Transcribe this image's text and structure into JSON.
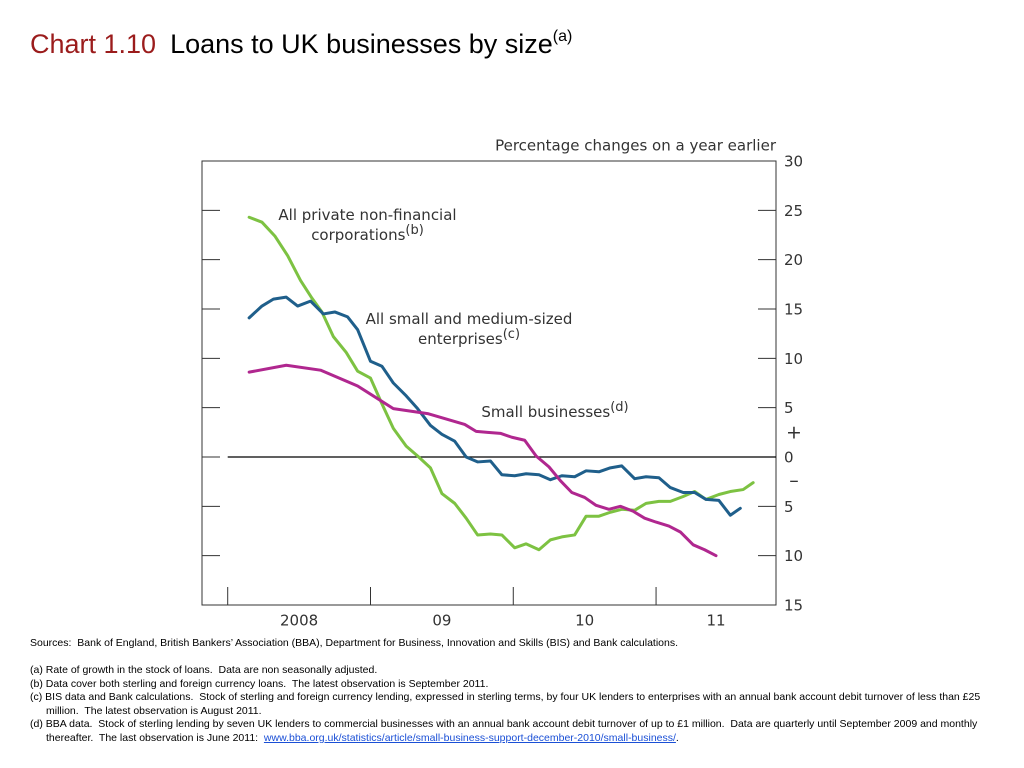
{
  "chart_data": {
    "type": "line",
    "chart_number": "Chart 1.10",
    "title": "Loans to UK businesses by size",
    "title_note": "(a)",
    "y_label": "Percentage changes on a year earlier",
    "positive_sign": "+",
    "negative_sign": "–",
    "xlim": [
      2007.82,
      2011.84
    ],
    "xticks": [
      {
        "value": 2008,
        "label": "2008"
      },
      {
        "value": 2009,
        "label": "09"
      },
      {
        "value": 2010,
        "label": "10"
      },
      {
        "value": 2011,
        "label": "11"
      }
    ],
    "ylim": [
      -15,
      30
    ],
    "yticks": [
      {
        "value": -15,
        "label": "15"
      },
      {
        "value": -10,
        "label": "10"
      },
      {
        "value": -5,
        "label": "5"
      },
      0,
      5,
      10,
      15,
      20,
      25,
      30
    ],
    "series": [
      {
        "name": "All private non-financial corporations",
        "note": "(b)",
        "color": "#7dc242",
        "x": [
          2008.15,
          2008.24,
          2008.33,
          2008.42,
          2008.51,
          2008.59,
          2008.66,
          2008.74,
          2008.83,
          2008.91,
          2009.0,
          2009.08,
          2009.16,
          2009.25,
          2009.33,
          2009.42,
          2009.5,
          2009.59,
          2009.67,
          2009.75,
          2009.84,
          2009.92,
          2010.01,
          2010.09,
          2010.18,
          2010.26,
          2010.34,
          2010.43,
          2010.51,
          2010.6,
          2010.68,
          2010.76,
          2010.85,
          2010.93,
          2011.02,
          2011.1,
          2011.19,
          2011.27,
          2011.35,
          2011.44,
          2011.52,
          2011.61,
          2011.68
        ],
        "values": [
          24.3,
          23.8,
          22.4,
          20.4,
          17.9,
          16.1,
          14.7,
          12.2,
          10.6,
          8.7,
          8.0,
          5.4,
          2.9,
          1.1,
          0.1,
          -1.1,
          -3.7,
          -4.7,
          -6.2,
          -7.9,
          -7.8,
          -7.9,
          -9.2,
          -8.8,
          -9.4,
          -8.4,
          -8.1,
          -7.9,
          -6.0,
          -6.0,
          -5.6,
          -5.3,
          -5.4,
          -4.7,
          -4.5,
          -4.5,
          -4.0,
          -3.5,
          -4.3,
          -3.8,
          -3.5,
          -3.3,
          -2.6
        ]
      },
      {
        "name": "All small and medium-sized enterprises",
        "note": "(c)",
        "color": "#1f5f8b",
        "x": [
          2008.15,
          2008.24,
          2008.32,
          2008.41,
          2008.49,
          2008.58,
          2008.67,
          2008.75,
          2008.84,
          2008.91,
          2009.0,
          2009.08,
          2009.16,
          2009.25,
          2009.33,
          2009.42,
          2009.5,
          2009.59,
          2009.67,
          2009.75,
          2009.84,
          2009.92,
          2010.01,
          2010.09,
          2010.18,
          2010.26,
          2010.34,
          2010.43,
          2010.51,
          2010.6,
          2010.68,
          2010.76,
          2010.85,
          2010.93,
          2011.02,
          2011.1,
          2011.19,
          2011.27,
          2011.35,
          2011.44,
          2011.52,
          2011.59
        ],
        "values": [
          14.1,
          15.3,
          16.0,
          16.2,
          15.3,
          15.8,
          14.5,
          14.7,
          14.2,
          12.9,
          9.7,
          9.2,
          7.5,
          6.2,
          4.9,
          3.2,
          2.3,
          1.6,
          0.0,
          -0.5,
          -0.4,
          -1.8,
          -1.9,
          -1.7,
          -1.8,
          -2.3,
          -1.9,
          -2.0,
          -1.4,
          -1.5,
          -1.1,
          -0.9,
          -2.2,
          -2.0,
          -2.1,
          -3.1,
          -3.6,
          -3.6,
          -4.3,
          -4.4,
          -5.9,
          -5.2
        ]
      },
      {
        "name": "Small businesses",
        "note": "(d)",
        "color": "#b0278f",
        "x": [
          2008.15,
          2008.41,
          2008.65,
          2008.91,
          2009.16,
          2009.4,
          2009.66,
          2009.74,
          2009.82,
          2009.91,
          2009.99,
          2010.08,
          2010.16,
          2010.25,
          2010.33,
          2010.41,
          2010.5,
          2010.58,
          2010.67,
          2010.75,
          2010.84,
          2010.92,
          2011.0,
          2011.09,
          2011.17,
          2011.26,
          2011.34,
          2011.42
        ],
        "values": [
          8.6,
          9.3,
          8.8,
          7.2,
          4.9,
          4.4,
          3.3,
          2.6,
          2.5,
          2.4,
          2.0,
          1.7,
          0.1,
          -1.0,
          -2.4,
          -3.6,
          -4.1,
          -4.9,
          -5.3,
          -5.0,
          -5.5,
          -6.2,
          -6.6,
          -7.0,
          -7.6,
          -8.9,
          -9.4,
          -10.0
        ]
      }
    ],
    "sources": "Sources:  Bank of England, British Bankers’ Association (BBA), Department for Business, Innovation and Skills (BIS) and Bank calculations.",
    "notes": [
      {
        "text": "(a) Rate of growth in the stock of loans.  Data are non seasonally adjusted."
      },
      {
        "text": "(b) Data cover both sterling and foreign currency loans.  The latest observation is September 2011."
      },
      {
        "text": "(c) BIS data and Bank calculations.  Stock of sterling and foreign currency lending, expressed in sterling terms, by four UK lenders to enterprises with an annual bank account debit turnover of less than £25 million.  The latest observation is August 2011."
      },
      {
        "text": "(d) BBA data.  Stock of sterling lending by seven UK lenders to commercial businesses with an annual bank account debit turnover of up to £1 million.  Data are quarterly until September 2009 and monthly thereafter.  The last observation is June 2011:  ",
        "link": "www.bba.org.uk/statistics/article/small-business-support-december-2010/small-business/",
        "end": "."
      }
    ]
  }
}
